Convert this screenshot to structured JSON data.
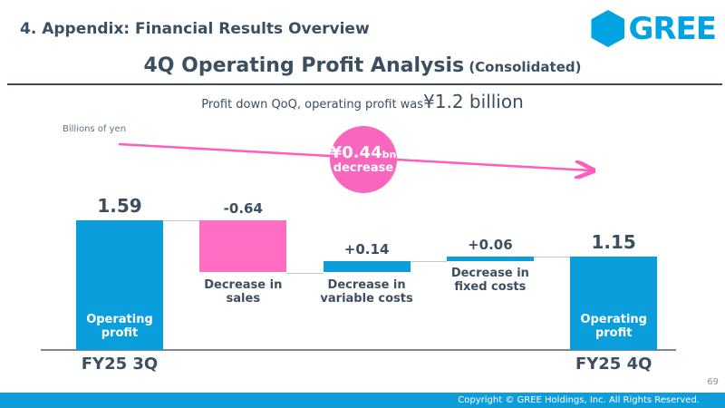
{
  "header": {
    "breadcrumb": "4. Appendix: Financial Results Overview",
    "logo_text": "GREE"
  },
  "title": {
    "main": "4Q Operating Profit Analysis",
    "suffix": " (Consolidated)"
  },
  "subtitle": {
    "prefix": "Profit down QoQ, operating profit was ",
    "highlight": "¥1.2 billion"
  },
  "annotation": {
    "value": "¥0.44",
    "unit": "bn",
    "label": "decrease",
    "circle_color": "#F866BD",
    "arrow_color": "#FF5CBE"
  },
  "chart_data": {
    "type": "bar",
    "subtype": "waterfall",
    "unit_label": "Billions of yen",
    "ylim": [
      0,
      1.59
    ],
    "grid": false,
    "colors": {
      "positive": "#0A9EDC",
      "negative": "#FF6EC3"
    },
    "bars": [
      {
        "name": "fy25-3q-operating-profit",
        "display": "1.59",
        "value": 1.59,
        "from": 0,
        "to": 1.59,
        "color": "#0A9EDC",
        "label_size": "large",
        "inner_label": [
          "Operating",
          "profit"
        ],
        "axis_label": "FY25 3Q"
      },
      {
        "name": "decrease-in-sales",
        "display": "-0.64",
        "value": -0.64,
        "from": 1.59,
        "to": 0.95,
        "color": "#FF6EC3",
        "label_size": "small",
        "below_label": [
          "Decrease in",
          "sales"
        ]
      },
      {
        "name": "decrease-in-variable-costs",
        "display": "+0.14",
        "value": 0.14,
        "from": 0.95,
        "to": 1.09,
        "color": "#0A9EDC",
        "label_size": "small",
        "below_label": [
          "Decrease in",
          "variable costs"
        ]
      },
      {
        "name": "decrease-in-fixed-costs",
        "display": "+0.06",
        "value": 0.06,
        "from": 1.09,
        "to": 1.15,
        "color": "#0A9EDC",
        "label_size": "small",
        "below_label": [
          "Decrease in",
          "fixed costs"
        ]
      },
      {
        "name": "fy25-4q-operating-profit",
        "display": "1.15",
        "value": 1.15,
        "from": 0,
        "to": 1.15,
        "color": "#0A9EDC",
        "label_size": "large",
        "inner_label": [
          "Operating",
          "profit"
        ],
        "axis_label": "FY25 4Q"
      }
    ],
    "connectors": [
      1.59,
      0.95,
      1.09,
      1.15
    ]
  },
  "footer": {
    "page_number": "69",
    "copyright": "Copyright © GREE Holdings, Inc. All Rights Reserved."
  }
}
